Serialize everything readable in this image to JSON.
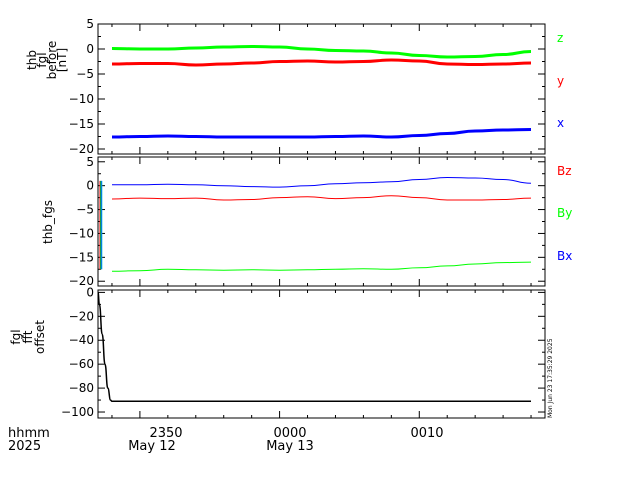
{
  "x_axis": {
    "label_line1": "hhmm",
    "label_line2": "2025",
    "ticks": [
      {
        "time": "2350",
        "date": "May 12"
      },
      {
        "time": "0000",
        "date": "May 13"
      },
      {
        "time": "0010",
        "date": ""
      }
    ]
  },
  "timestamp": "Mon Jun 23 17:35:29 2025",
  "chart_data": [
    {
      "type": "line",
      "title": "",
      "ylabel_lines": [
        "thb",
        "fgl",
        "before",
        "[nT]"
      ],
      "ylim": [
        -21,
        5
      ],
      "y_ticks": [
        5,
        0,
        -5,
        -10,
        -15,
        -20
      ],
      "x_minutes": [
        -12,
        -10,
        -8,
        -6,
        -4,
        -2,
        0,
        2,
        4,
        6,
        8,
        10,
        12,
        14,
        16,
        18
      ],
      "series": [
        {
          "name": "z",
          "color": "#00ff00",
          "values": [
            0.1,
            0.0,
            0.0,
            0.2,
            0.4,
            0.5,
            0.4,
            0.0,
            -0.3,
            -0.4,
            -0.8,
            -1.3,
            -1.6,
            -1.5,
            -1.1,
            -0.5
          ]
        },
        {
          "name": "y",
          "color": "#ff0000",
          "values": [
            -3.0,
            -2.9,
            -2.9,
            -3.2,
            -3.0,
            -2.8,
            -2.5,
            -2.4,
            -2.6,
            -2.5,
            -2.2,
            -2.4,
            -3.0,
            -3.1,
            -3.0,
            -2.8
          ]
        },
        {
          "name": "x",
          "color": "#0000ff",
          "values": [
            -17.6,
            -17.5,
            -17.4,
            -17.5,
            -17.6,
            -17.6,
            -17.6,
            -17.6,
            -17.5,
            -17.4,
            -17.6,
            -17.3,
            -16.9,
            -16.4,
            -16.2,
            -16.1
          ]
        }
      ]
    },
    {
      "type": "line",
      "title": "",
      "ylabel_lines": [
        "thb_fgs"
      ],
      "ylim": [
        -21,
        6
      ],
      "y_ticks": [
        5,
        0,
        -5,
        -10,
        -15,
        -20
      ],
      "x_minutes": [
        -12,
        -10,
        -8,
        -6,
        -4,
        -2,
        0,
        2,
        4,
        6,
        8,
        10,
        12,
        14,
        16,
        18
      ],
      "series": [
        {
          "name": "Bz",
          "color": "#ff0000",
          "values": [
            -2.8,
            -2.6,
            -2.7,
            -2.6,
            -3.0,
            -2.9,
            -2.5,
            -2.3,
            -2.7,
            -2.5,
            -2.1,
            -2.5,
            -3.0,
            -3.0,
            -2.9,
            -2.6
          ]
        },
        {
          "name": "By",
          "color": "#00ff00",
          "values": [
            -17.9,
            -17.8,
            -17.5,
            -17.6,
            -17.7,
            -17.6,
            -17.7,
            -17.6,
            -17.5,
            -17.4,
            -17.5,
            -17.2,
            -16.8,
            -16.4,
            -16.1,
            -16.0
          ]
        },
        {
          "name": "Bx",
          "color": "#0000ff",
          "values": [
            0.2,
            0.2,
            0.3,
            0.2,
            0.0,
            -0.2,
            -0.3,
            0.0,
            0.4,
            0.6,
            0.8,
            1.3,
            1.7,
            1.6,
            1.3,
            0.5
          ]
        }
      ]
    },
    {
      "type": "line",
      "title": "",
      "ylabel_lines": [
        "fgl",
        "fft",
        "offset"
      ],
      "ylim": [
        -105,
        2
      ],
      "y_ticks": [
        0,
        -20,
        -40,
        -60,
        -80,
        -100
      ],
      "x_minutes": [
        -13.0,
        -12.9,
        -12.7,
        -12.5,
        -12.3,
        -12.1,
        -12.0,
        -10,
        -5,
        0,
        5,
        10,
        15,
        18
      ],
      "series": [
        {
          "name": "",
          "color": "#000000",
          "values": [
            0,
            -10,
            -35,
            -60,
            -80,
            -90,
            -91,
            -91,
            -91,
            -91,
            -91,
            -91,
            -91,
            -91
          ]
        }
      ]
    }
  ]
}
